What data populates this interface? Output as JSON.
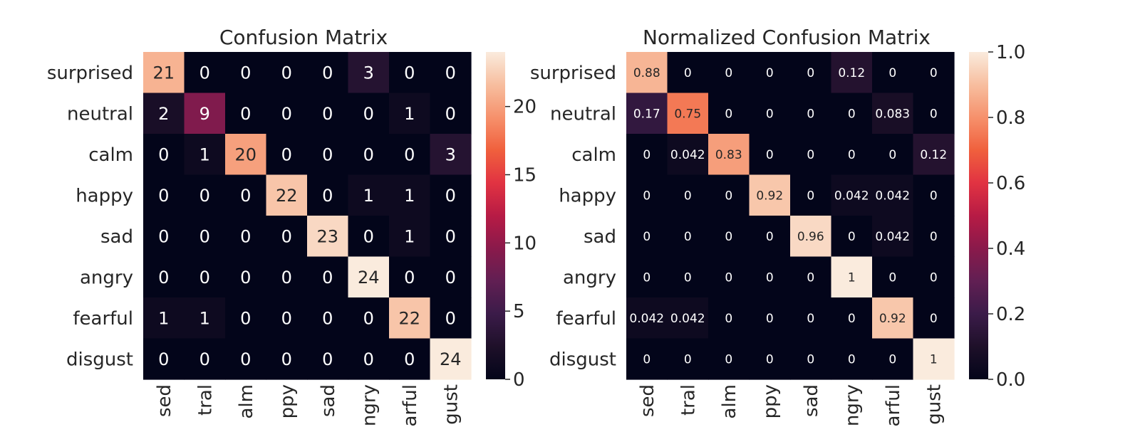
{
  "chart_data": [
    {
      "type": "heatmap",
      "title": "Confusion Matrix",
      "row_labels": [
        "surprised",
        "neutral",
        "calm",
        "happy",
        "sad",
        "angry",
        "fearful",
        "disgust"
      ],
      "col_labels": [
        "sed",
        "tral",
        "alm",
        "ppy",
        "sad",
        "ngry",
        "arful",
        "gust"
      ],
      "values": [
        [
          21,
          0,
          0,
          0,
          0,
          3,
          0,
          0
        ],
        [
          2,
          9,
          0,
          0,
          0,
          0,
          1,
          0
        ],
        [
          0,
          1,
          20,
          0,
          0,
          0,
          0,
          3
        ],
        [
          0,
          0,
          0,
          22,
          0,
          1,
          1,
          0
        ],
        [
          0,
          0,
          0,
          0,
          23,
          0,
          1,
          0
        ],
        [
          0,
          0,
          0,
          0,
          0,
          24,
          0,
          0
        ],
        [
          1,
          1,
          0,
          0,
          0,
          0,
          22,
          0
        ],
        [
          0,
          0,
          0,
          0,
          0,
          0,
          0,
          24
        ]
      ],
      "value_labels": [
        [
          "21",
          "0",
          "0",
          "0",
          "0",
          "3",
          "0",
          "0"
        ],
        [
          "2",
          "9",
          "0",
          "0",
          "0",
          "0",
          "1",
          "0"
        ],
        [
          "0",
          "1",
          "20",
          "0",
          "0",
          "0",
          "0",
          "3"
        ],
        [
          "0",
          "0",
          "0",
          "22",
          "0",
          "1",
          "1",
          "0"
        ],
        [
          "0",
          "0",
          "0",
          "0",
          "23",
          "0",
          "1",
          "0"
        ],
        [
          "0",
          "0",
          "0",
          "0",
          "0",
          "24",
          "0",
          "0"
        ],
        [
          "1",
          "1",
          "0",
          "0",
          "0",
          "0",
          "22",
          "0"
        ],
        [
          "0",
          "0",
          "0",
          "0",
          "0",
          "0",
          "0",
          "24"
        ]
      ],
      "colorbar": {
        "range": [
          0,
          24
        ],
        "ticks": [
          0,
          5,
          10,
          15,
          20
        ],
        "tick_labels": [
          "0",
          "5",
          "10",
          "15",
          "20"
        ]
      },
      "colormap": "rocket"
    },
    {
      "type": "heatmap",
      "title": "Normalized Confusion Matrix",
      "row_labels": [
        "surprised",
        "neutral",
        "calm",
        "happy",
        "sad",
        "angry",
        "fearful",
        "disgust"
      ],
      "col_labels": [
        "sed",
        "tral",
        "alm",
        "ppy",
        "sad",
        "ngry",
        "arful",
        "gust"
      ],
      "values": [
        [
          0.88,
          0,
          0,
          0,
          0,
          0.12,
          0,
          0
        ],
        [
          0.17,
          0.75,
          0,
          0,
          0,
          0,
          0.083,
          0
        ],
        [
          0,
          0.042,
          0.83,
          0,
          0,
          0,
          0,
          0.12
        ],
        [
          0,
          0,
          0,
          0.92,
          0,
          0.042,
          0.042,
          0
        ],
        [
          0,
          0,
          0,
          0,
          0.96,
          0,
          0.042,
          0
        ],
        [
          0,
          0,
          0,
          0,
          0,
          1,
          0,
          0
        ],
        [
          0.042,
          0.042,
          0,
          0,
          0,
          0,
          0.92,
          0
        ],
        [
          0,
          0,
          0,
          0,
          0,
          0,
          0,
          1
        ]
      ],
      "value_labels": [
        [
          "0.88",
          "0",
          "0",
          "0",
          "0",
          "0.12",
          "0",
          "0"
        ],
        [
          "0.17",
          "0.75",
          "0",
          "0",
          "0",
          "0",
          "0.083",
          "0"
        ],
        [
          "0",
          "0.042",
          "0.83",
          "0",
          "0",
          "0",
          "0",
          "0.12"
        ],
        [
          "0",
          "0",
          "0",
          "0.92",
          "0",
          "0.042",
          "0.042",
          "0"
        ],
        [
          "0",
          "0",
          "0",
          "0",
          "0.96",
          "0",
          "0.042",
          "0"
        ],
        [
          "0",
          "0",
          "0",
          "0",
          "0",
          "1",
          "0",
          "0"
        ],
        [
          "0.042",
          "0.042",
          "0",
          "0",
          "0",
          "0",
          "0.92",
          "0"
        ],
        [
          "0",
          "0",
          "0",
          "0",
          "0",
          "0",
          "0",
          "1"
        ]
      ],
      "colorbar": {
        "range": [
          0,
          1
        ],
        "ticks": [
          0,
          0.2,
          0.4,
          0.6,
          0.8,
          1.0
        ],
        "tick_labels": [
          "0.0",
          "0.2",
          "0.4",
          "0.6",
          "0.8",
          "1.0"
        ]
      },
      "colormap": "rocket"
    }
  ],
  "colors": {
    "colormap_stops": [
      "#03051a",
      "#1e1029",
      "#3b1b49",
      "#611f53",
      "#8a1a4b",
      "#b71b45",
      "#e13342",
      "#f0603d",
      "#f6916c",
      "#f7be9f",
      "#faebdd"
    ],
    "low_text": "#ffffff",
    "high_text": "#262626",
    "axis_text": "#262626"
  }
}
